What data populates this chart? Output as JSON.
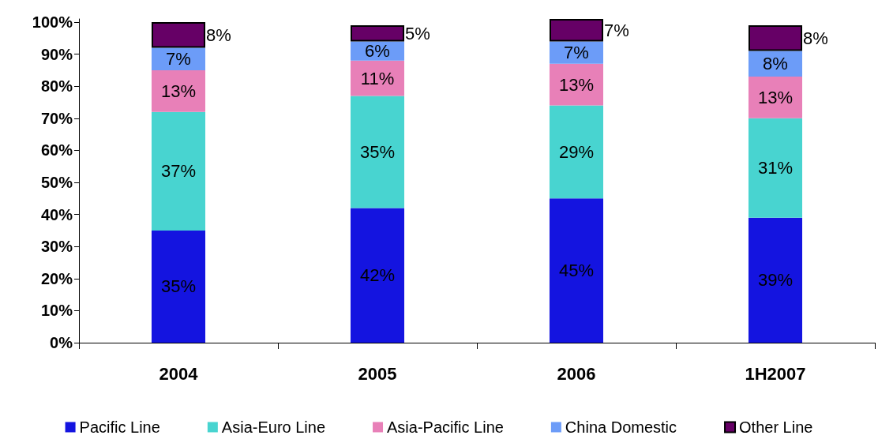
{
  "chart_data": {
    "type": "bar",
    "stacked": true,
    "categories": [
      "2004",
      "2005",
      "2006",
      "1H2007"
    ],
    "series": [
      {
        "name": "Pacific Line",
        "color": "#1414e0",
        "values": [
          35,
          42,
          45,
          39
        ],
        "value_labels": [
          "35%",
          "42%",
          "45%",
          "39%"
        ]
      },
      {
        "name": "Asia-Euro Line",
        "color": "#48d4d0",
        "values": [
          37,
          35,
          29,
          31
        ],
        "value_labels": [
          "37%",
          "35%",
          "29%",
          "31%"
        ]
      },
      {
        "name": "Asia-Pacific Line",
        "color": "#e880b8",
        "values": [
          13,
          11,
          13,
          13
        ],
        "value_labels": [
          "13%",
          "11%",
          "13%",
          "13%"
        ]
      },
      {
        "name": "China Domestic",
        "color": "#6c9cf8",
        "values": [
          7,
          6,
          7,
          8
        ],
        "value_labels": [
          "7%",
          "6%",
          "7%",
          "8%"
        ]
      },
      {
        "name": "Other Line",
        "color": "#660066",
        "values": [
          8,
          5,
          7,
          8
        ],
        "value_labels": [
          "8%",
          "5%",
          "7%",
          "8%"
        ]
      }
    ],
    "ylim": [
      0,
      101
    ],
    "yticks": [
      {
        "value": 0,
        "label": "0%"
      },
      {
        "value": 10,
        "label": "10%"
      },
      {
        "value": 20,
        "label": "20%"
      },
      {
        "value": 30,
        "label": "30%"
      },
      {
        "value": 40,
        "label": "40%"
      },
      {
        "value": 50,
        "label": "50%"
      },
      {
        "value": 60,
        "label": "60%"
      },
      {
        "value": 70,
        "label": "70%"
      },
      {
        "value": 80,
        "label": "80%"
      },
      {
        "value": 90,
        "label": "90%"
      },
      {
        "value": 100,
        "label": "100%"
      }
    ],
    "grid": false,
    "legend": "bottom"
  }
}
